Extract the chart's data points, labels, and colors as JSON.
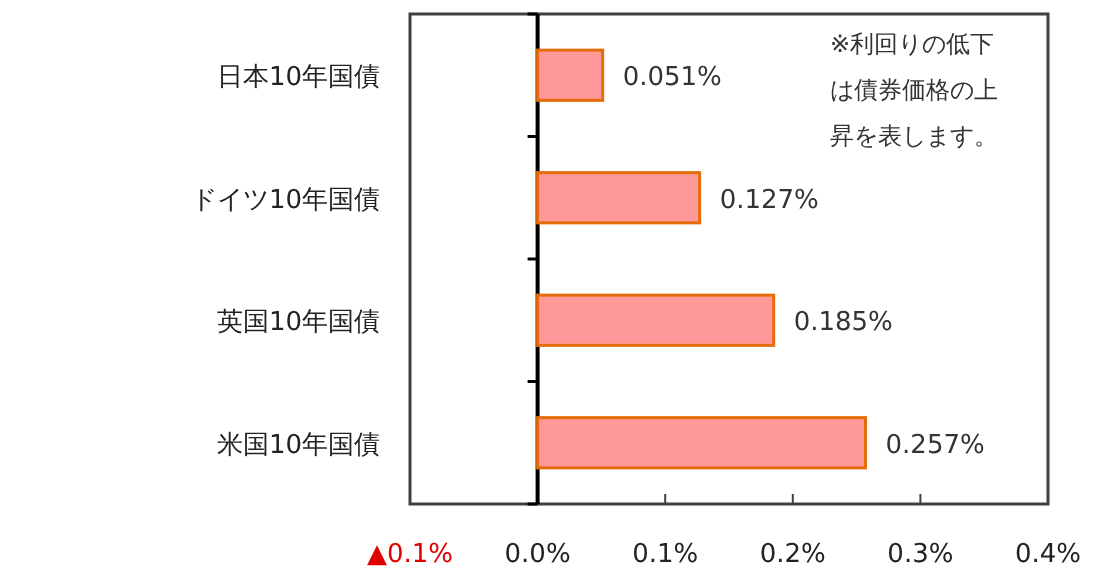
{
  "chart_data": {
    "type": "bar",
    "orientation": "horizontal",
    "categories": [
      "日本10年国債",
      "ドイツ10年国債",
      "英国10年国債",
      "米国10年国債"
    ],
    "values": [
      0.051,
      0.127,
      0.185,
      0.257
    ],
    "value_labels": [
      "0.051%",
      "0.127%",
      "0.185%",
      "0.257%"
    ],
    "color": "#ff9999",
    "xlim": [
      -0.1,
      0.4
    ],
    "xticks": [
      {
        "value": -0.1,
        "label": "▲0.1%"
      },
      {
        "value": 0,
        "label": "0.0%"
      },
      {
        "value": 0.1,
        "label": "0.1%"
      },
      {
        "value": 0.2,
        "label": "0.2%"
      },
      {
        "value": 0.3,
        "label": "0.3%"
      },
      {
        "value": 0.4,
        "label": "0.4%"
      }
    ],
    "annotations": [
      "※利回りの低下は債券価格の上昇を表します。"
    ],
    "tick_labels": "x"
  }
}
